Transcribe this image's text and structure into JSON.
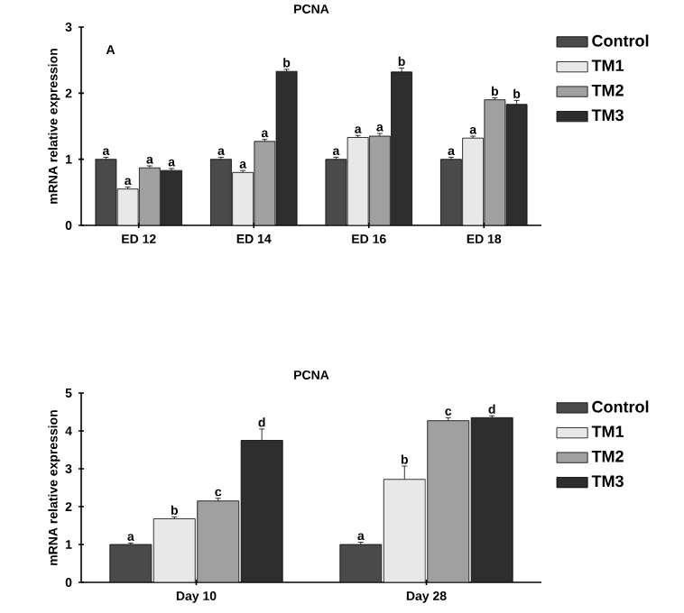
{
  "chart_data": [
    {
      "type": "bar",
      "title": "PCNA",
      "ylabel": "mRNA relative expression",
      "categories": [
        "ED 12",
        "ED 14",
        "ED 16",
        "ED 18"
      ],
      "ylim": [
        0,
        3
      ],
      "yticks": [
        0,
        1,
        2,
        3
      ],
      "legend": "right",
      "grid": false,
      "series": [
        {
          "name": "Control",
          "color": "#4a4a4a",
          "values": [
            1.0,
            1.0,
            1.0,
            1.0
          ],
          "errors": [
            0.03,
            0.03,
            0.03,
            0.03
          ]
        },
        {
          "name": "TM1",
          "color": "#e8e8e8",
          "values": [
            0.55,
            0.8,
            1.33,
            1.32
          ],
          "errors": [
            0.03,
            0.03,
            0.03,
            0.03
          ]
        },
        {
          "name": "TM2",
          "color": "#a0a0a0",
          "values": [
            0.87,
            1.27,
            1.35,
            1.9
          ],
          "errors": [
            0.03,
            0.03,
            0.04,
            0.03
          ]
        },
        {
          "name": "TM3",
          "color": "#2e2e2e",
          "values": [
            0.83,
            2.33,
            2.32,
            1.83
          ],
          "errors": [
            0.03,
            0.03,
            0.06,
            0.06
          ]
        }
      ],
      "annotations": [
        "a",
        "a",
        "a",
        "a",
        "a",
        "a",
        "a",
        "b",
        "a",
        "a",
        "a",
        "b",
        "a",
        "a",
        "b",
        "b",
        "A"
      ]
    },
    {
      "type": "bar",
      "title": "PCNA",
      "ylabel": "mRNA relative expression",
      "categories": [
        "Day 10",
        "Day 28"
      ],
      "ylim": [
        0,
        5
      ],
      "yticks": [
        0,
        1,
        2,
        3,
        4,
        5
      ],
      "legend": "right",
      "grid": false,
      "series": [
        {
          "name": "Control",
          "color": "#4a4a4a",
          "values": [
            1.0,
            1.0
          ],
          "errors": [
            0.04,
            0.06
          ]
        },
        {
          "name": "TM1",
          "color": "#e8e8e8",
          "values": [
            1.68,
            2.72
          ],
          "errors": [
            0.05,
            0.35
          ]
        },
        {
          "name": "TM2",
          "color": "#a0a0a0",
          "values": [
            2.15,
            4.27
          ],
          "errors": [
            0.07,
            0.08
          ]
        },
        {
          "name": "TM3",
          "color": "#2e2e2e",
          "values": [
            3.75,
            4.35
          ],
          "errors": [
            0.3,
            0.05
          ]
        }
      ],
      "annotations": [
        "a",
        "b",
        "c",
        "d",
        "a",
        "b",
        "c",
        "d"
      ]
    }
  ]
}
